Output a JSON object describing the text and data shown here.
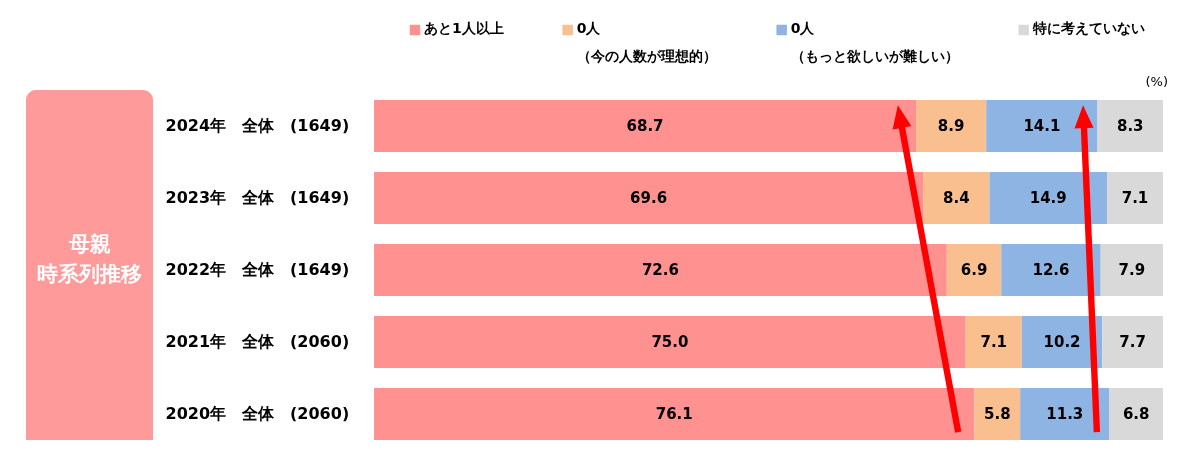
{
  "chart_data": {
    "type": "bar",
    "orientation": "horizontal",
    "stacked": true,
    "ylabel": "母親時系列推移",
    "categories": [
      "2024年　全体　(1649)",
      "2023年　全体　(1649)",
      "2022年　全体　(1649)",
      "2021年　全体　(2060)",
      "2020年　全体　(2060)"
    ],
    "series": [
      {
        "name": "あと1人以上",
        "color": "#ff9191",
        "values": [
          68.7,
          69.6,
          72.6,
          75.0,
          76.1
        ],
        "value_labels": [
          "68.7",
          "69.6",
          "72.6",
          "75.0",
          "76.1"
        ]
      },
      {
        "name": "0人（今の人数が理想的）",
        "color": "#f9bf8f",
        "values": [
          8.9,
          8.4,
          6.9,
          7.1,
          5.8
        ],
        "value_labels": [
          "8.9",
          "8.4",
          "6.9",
          "7.1",
          "5.8"
        ]
      },
      {
        "name": "0人（もっと欲しいが難しい）",
        "color": "#8eb4e3",
        "values": [
          14.1,
          14.9,
          12.6,
          10.2,
          11.3
        ],
        "value_labels": [
          "14.1",
          "14.9",
          "12.6",
          "10.2",
          "11.3"
        ]
      },
      {
        "name": "特に考えていない",
        "color": "#d9d9d9",
        "values": [
          8.3,
          7.1,
          7.9,
          7.7,
          6.8
        ],
        "value_labels": [
          "8.3",
          "7.1",
          "7.9",
          "7.7",
          "6.8"
        ]
      }
    ],
    "xlim": [
      0,
      100
    ],
    "tick_labels": "y",
    "legend": "top",
    "annotations": [
      "(%)"
    ]
  }
}
